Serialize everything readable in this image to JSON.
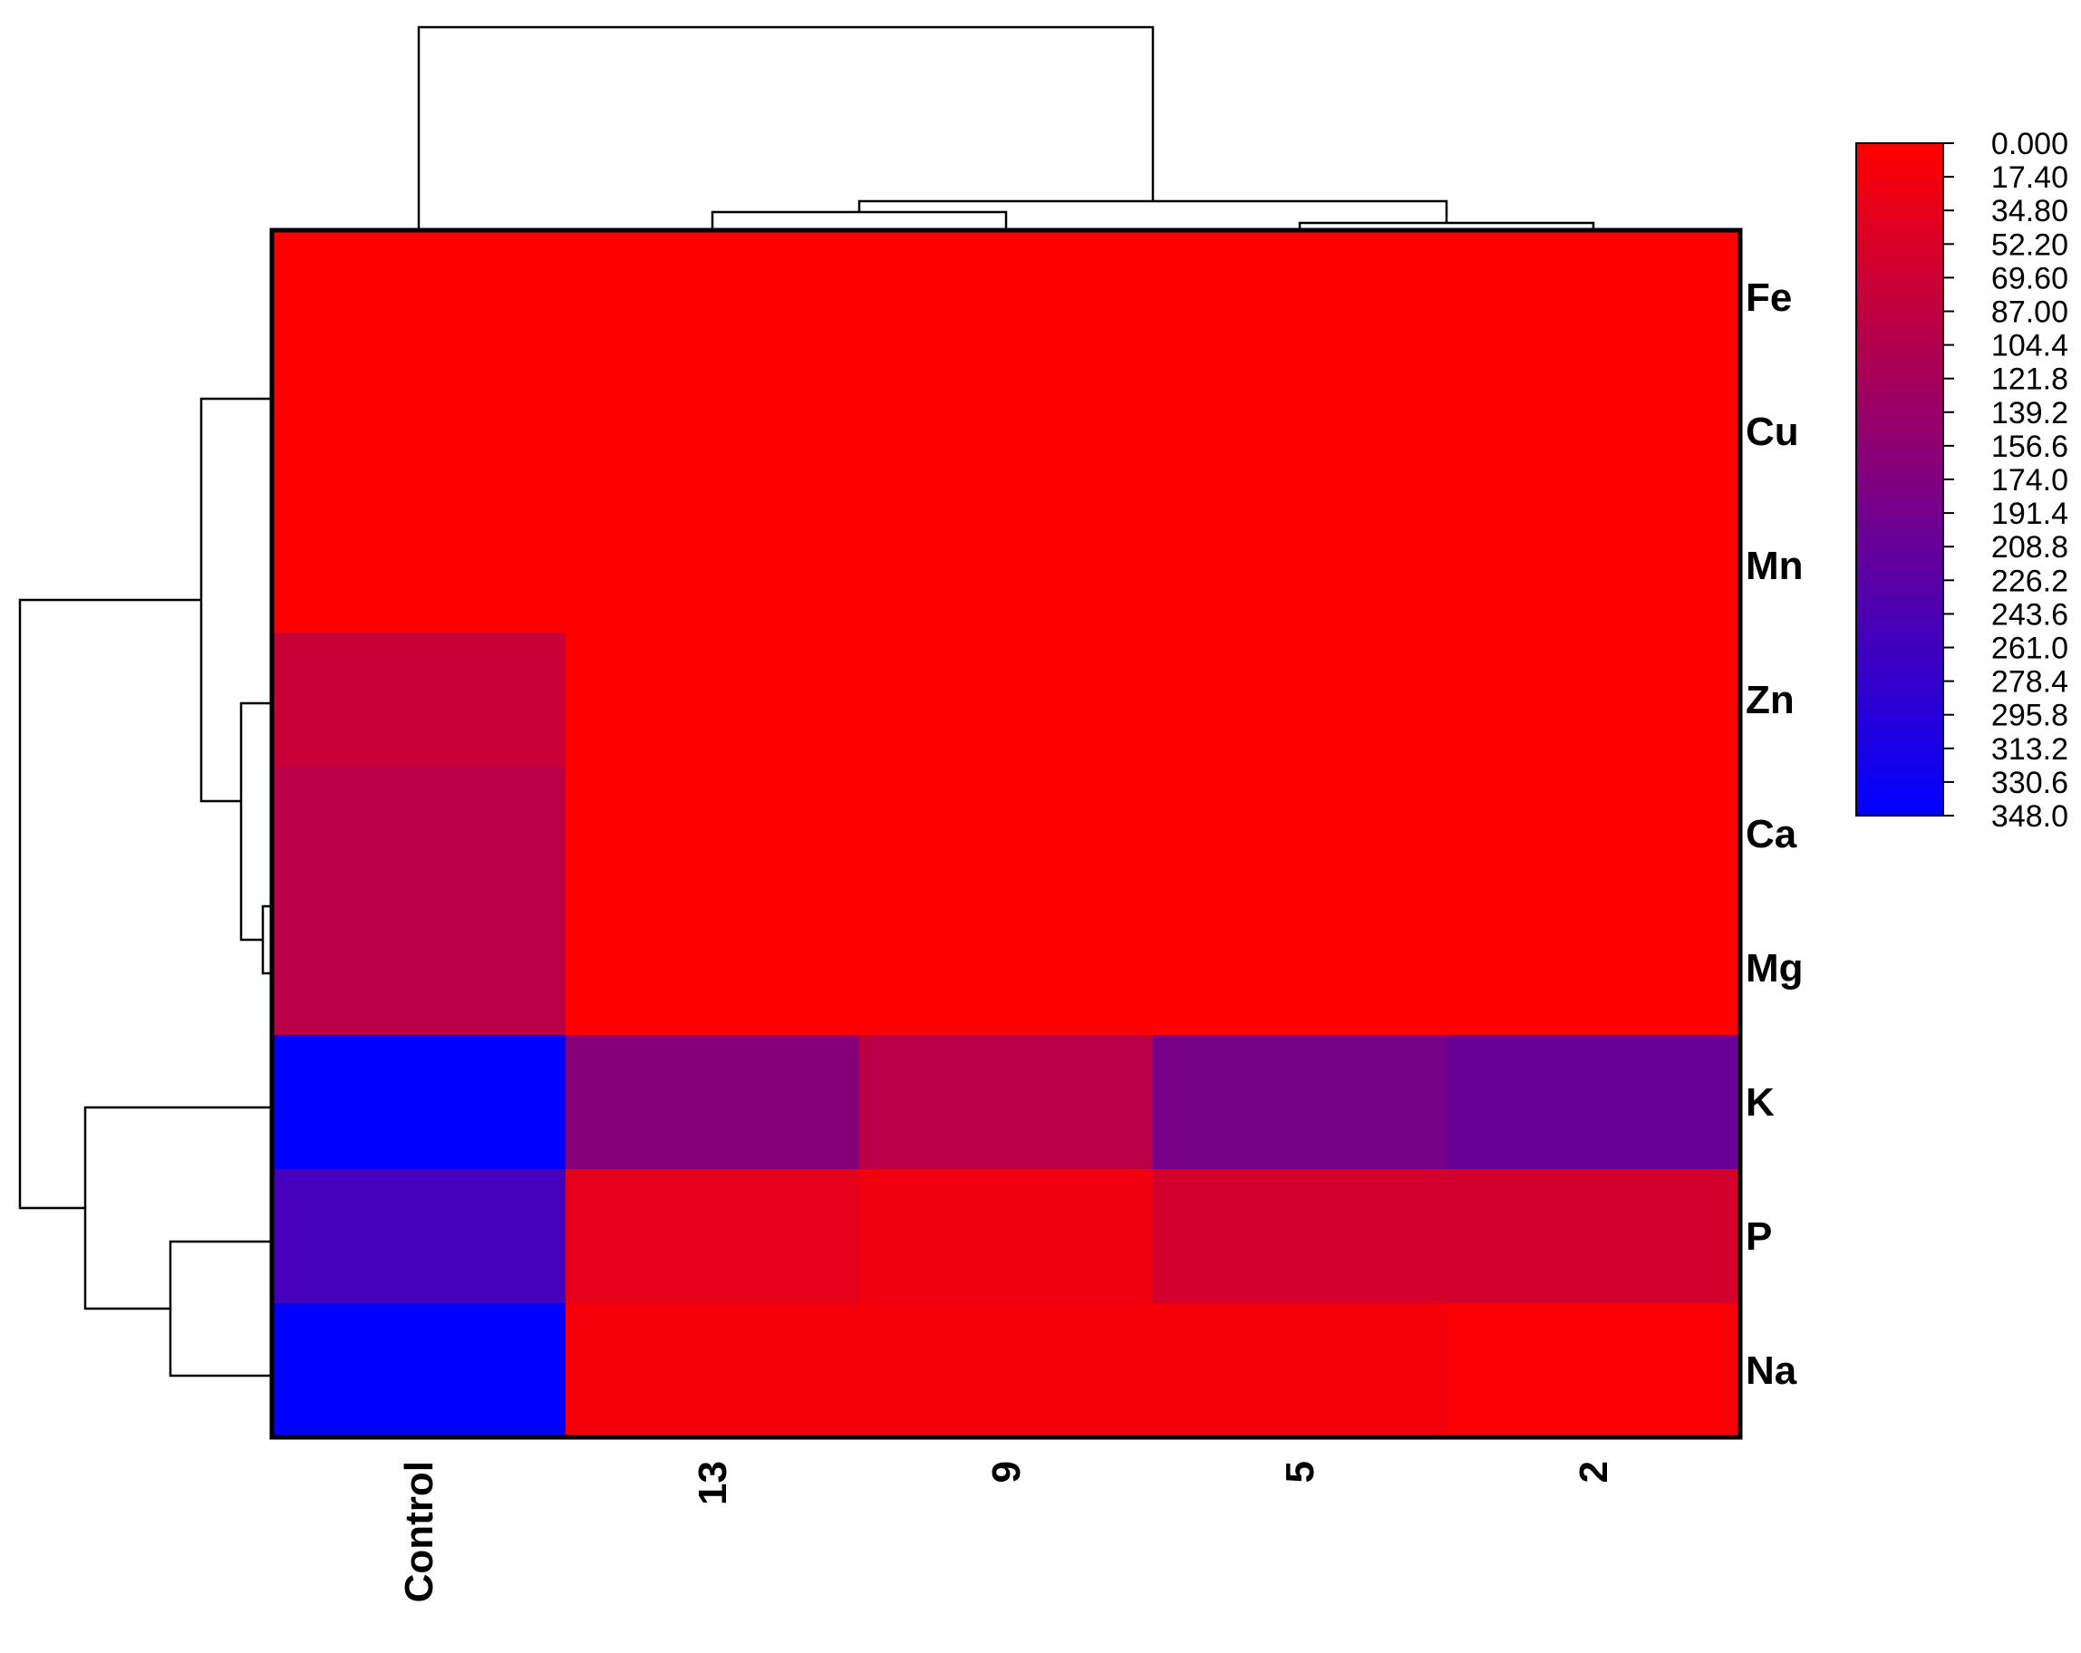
{
  "chart_data": {
    "type": "heatmap",
    "columns": [
      "Control",
      "13",
      "9",
      "5",
      "2"
    ],
    "rows": [
      "Fe",
      "Cu",
      "Mn",
      "Zn",
      "Ca",
      "Mg",
      "K",
      "P",
      "Na"
    ],
    "values": [
      [
        0,
        0,
        0,
        0,
        0
      ],
      [
        0,
        0,
        0,
        0,
        0
      ],
      [
        0,
        0,
        0,
        0,
        0
      ],
      [
        75,
        0,
        0,
        0,
        0
      ],
      [
        95,
        0,
        0,
        0,
        0
      ],
      [
        95,
        0,
        0,
        0,
        0
      ],
      [
        348,
        165,
        95,
        185,
        205
      ],
      [
        255,
        35,
        20,
        60,
        60
      ],
      [
        348,
        15,
        15,
        15,
        5
      ]
    ],
    "colorscale": {
      "min": 0,
      "max": 348,
      "low_color": "#ff0000",
      "high_color": "#0000ff",
      "ticks": [
        "0.000",
        "17.40",
        "34.80",
        "52.20",
        "69.60",
        "87.00",
        "104.4",
        "121.8",
        "139.2",
        "156.6",
        "174.0",
        "191.4",
        "208.8",
        "226.2",
        "243.6",
        "261.0",
        "278.4",
        "295.8",
        "313.2",
        "330.6",
        "348.0"
      ]
    },
    "row_dendrogram": true,
    "column_dendrogram": true,
    "legend_placement": "top-right"
  }
}
